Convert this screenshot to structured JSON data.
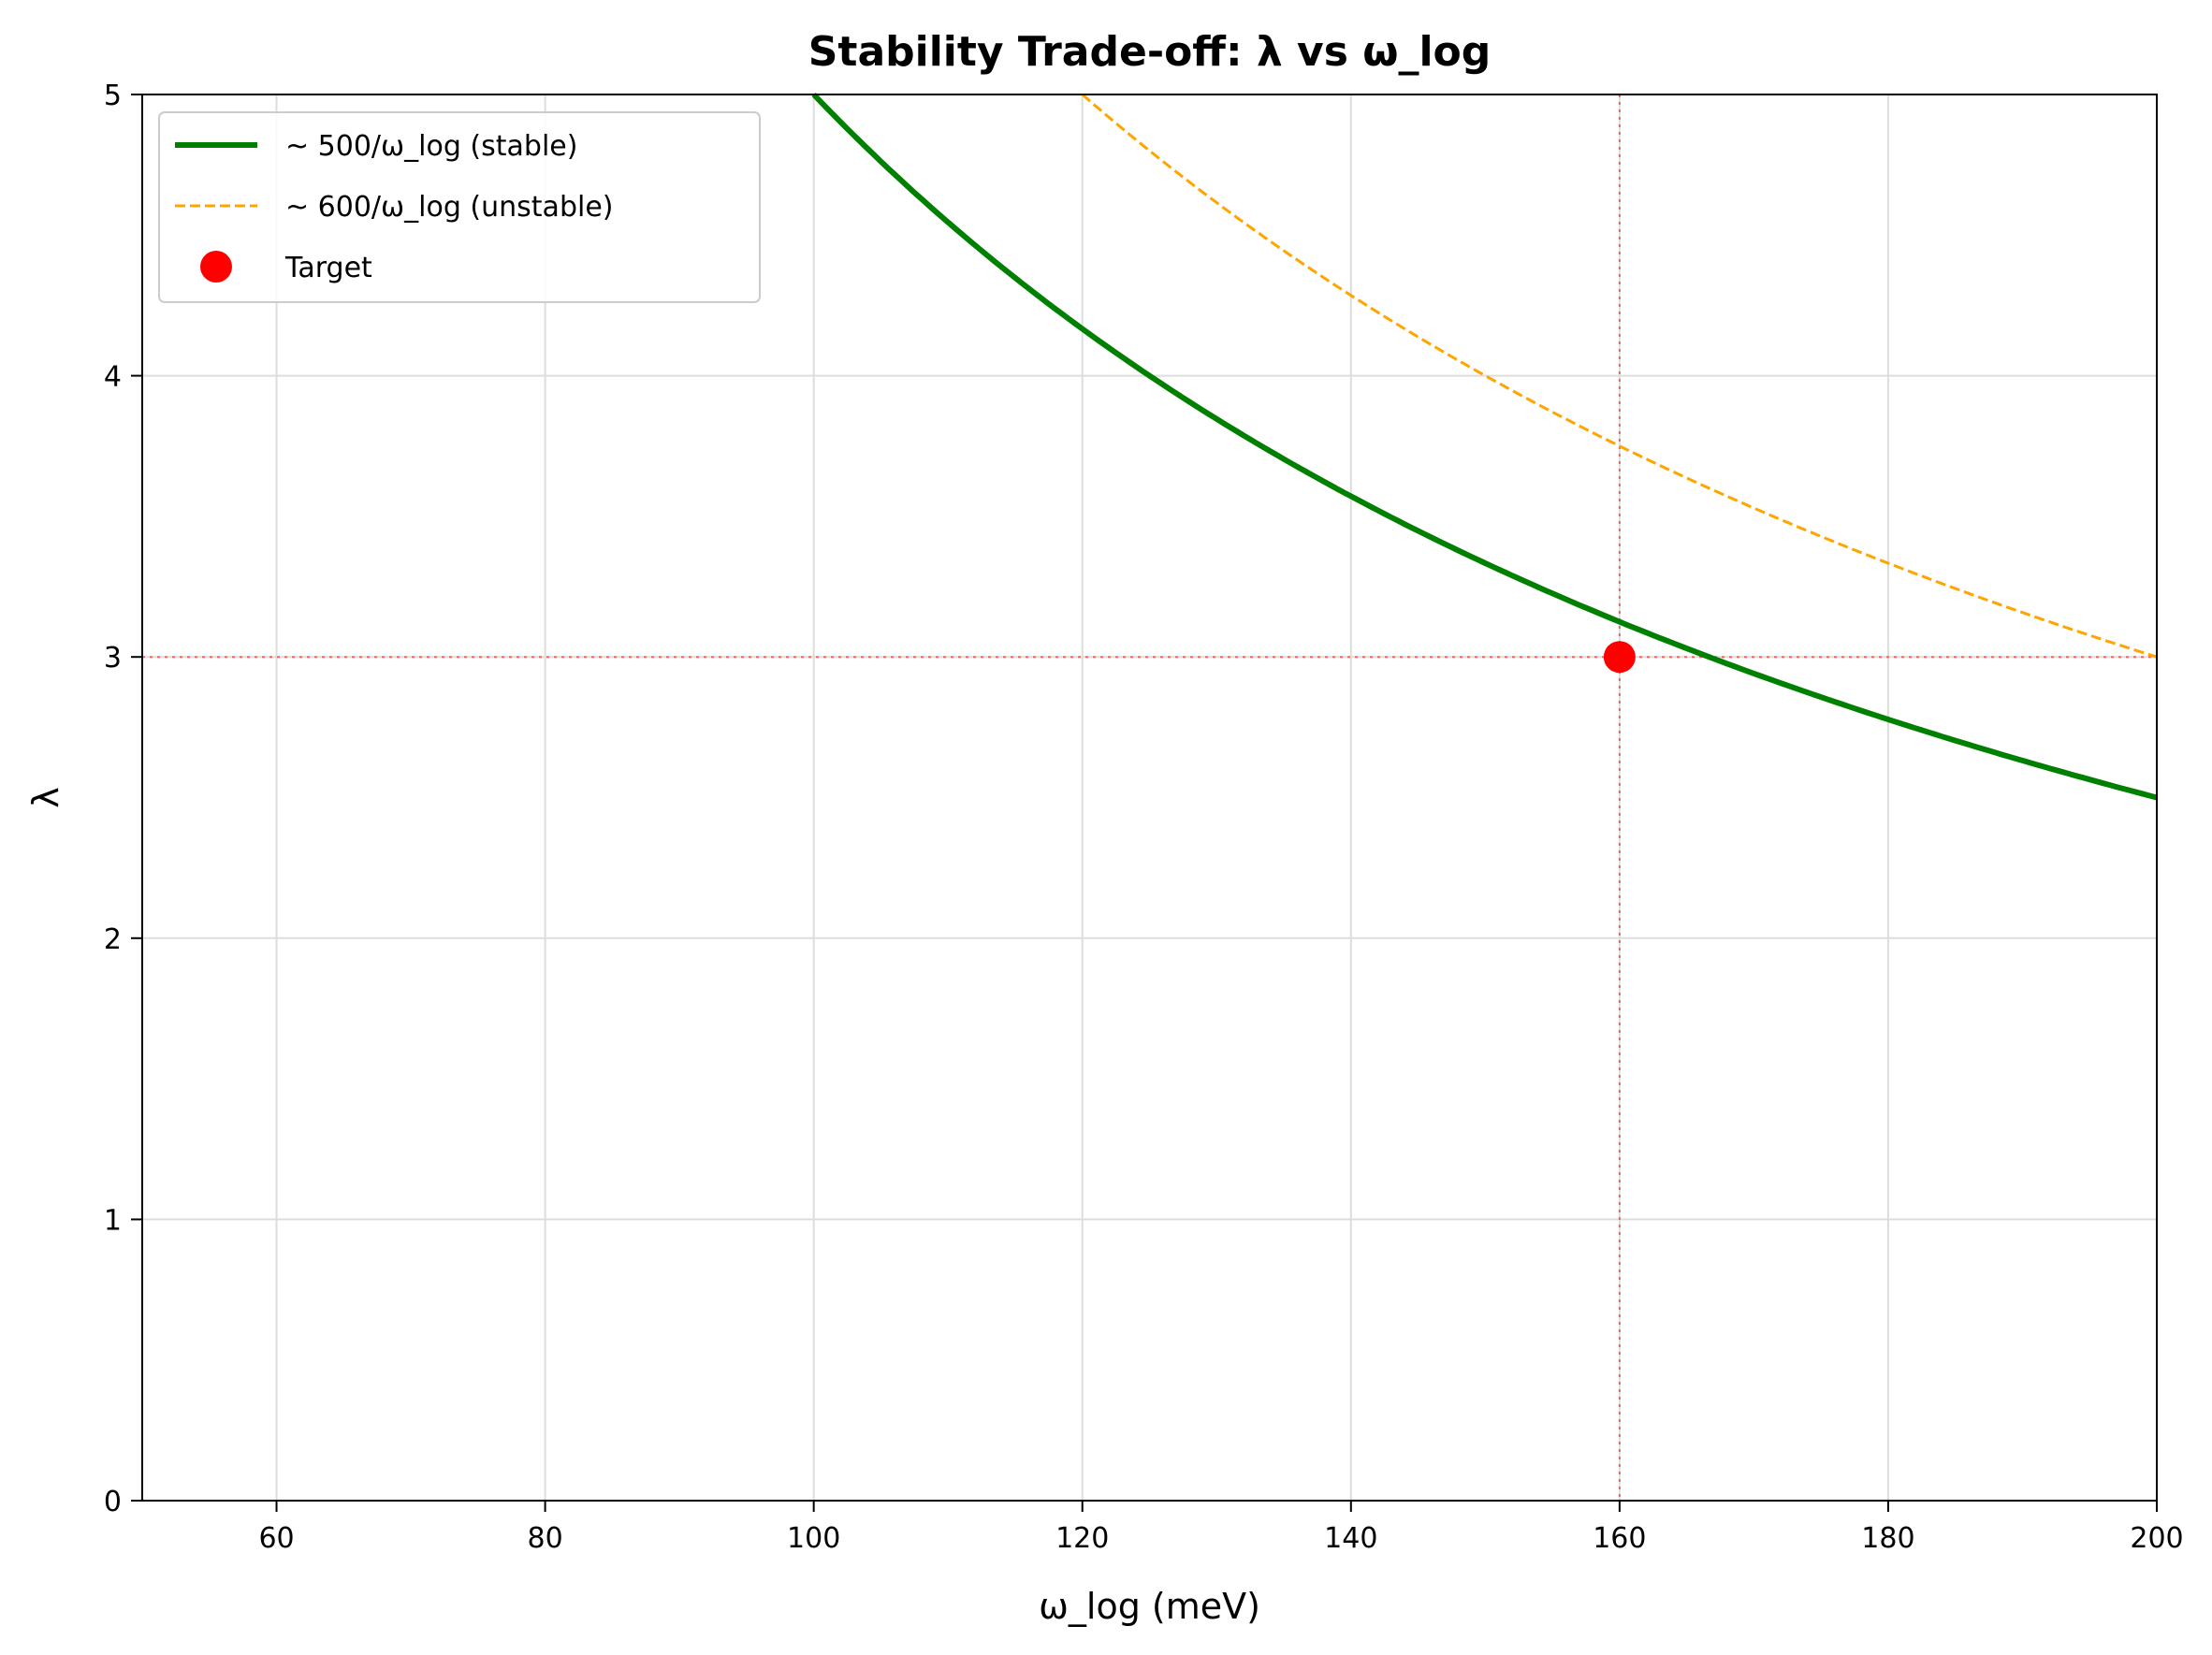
{
  "chart_data": {
    "type": "line",
    "title": "Stability Trade-off: λ vs ω_log",
    "xlabel": "ω_log (meV)",
    "ylabel": "λ",
    "xlim": [
      50,
      200
    ],
    "ylim": [
      0,
      5
    ],
    "x_ticks": [
      "60",
      "80",
      "100",
      "120",
      "140",
      "160",
      "180",
      "200"
    ],
    "y_ticks": [
      "0",
      "1",
      "2",
      "3",
      "4",
      "5"
    ],
    "grid": true,
    "legend_position": "upper-left",
    "series": [
      {
        "name": "~ 500/ω_log (stable)",
        "kind": "line",
        "style": "solid",
        "color": "#008000",
        "x": [
          100,
          110,
          120,
          130,
          140,
          150,
          160,
          170,
          180,
          190,
          200
        ],
        "y": [
          5.0,
          4.545,
          4.167,
          3.846,
          3.571,
          3.333,
          3.125,
          2.941,
          2.778,
          2.632,
          2.5
        ]
      },
      {
        "name": "~ 600/ω_log (unstable)",
        "kind": "line",
        "style": "dashed",
        "color": "#ffa500",
        "x": [
          120,
          130,
          140,
          150,
          160,
          170,
          180,
          190,
          200
        ],
        "y": [
          5.0,
          4.615,
          4.286,
          4.0,
          3.75,
          3.529,
          3.333,
          3.158,
          3.0
        ]
      },
      {
        "name": "Target",
        "kind": "scatter",
        "color": "#ff0000",
        "x": [
          160
        ],
        "y": [
          3
        ]
      }
    ],
    "reference_lines": [
      {
        "orientation": "vertical",
        "value": 160,
        "style": "dotted",
        "color": "#ff0000"
      },
      {
        "orientation": "horizontal",
        "value": 3,
        "style": "dotted",
        "color": "#ff0000"
      }
    ]
  }
}
